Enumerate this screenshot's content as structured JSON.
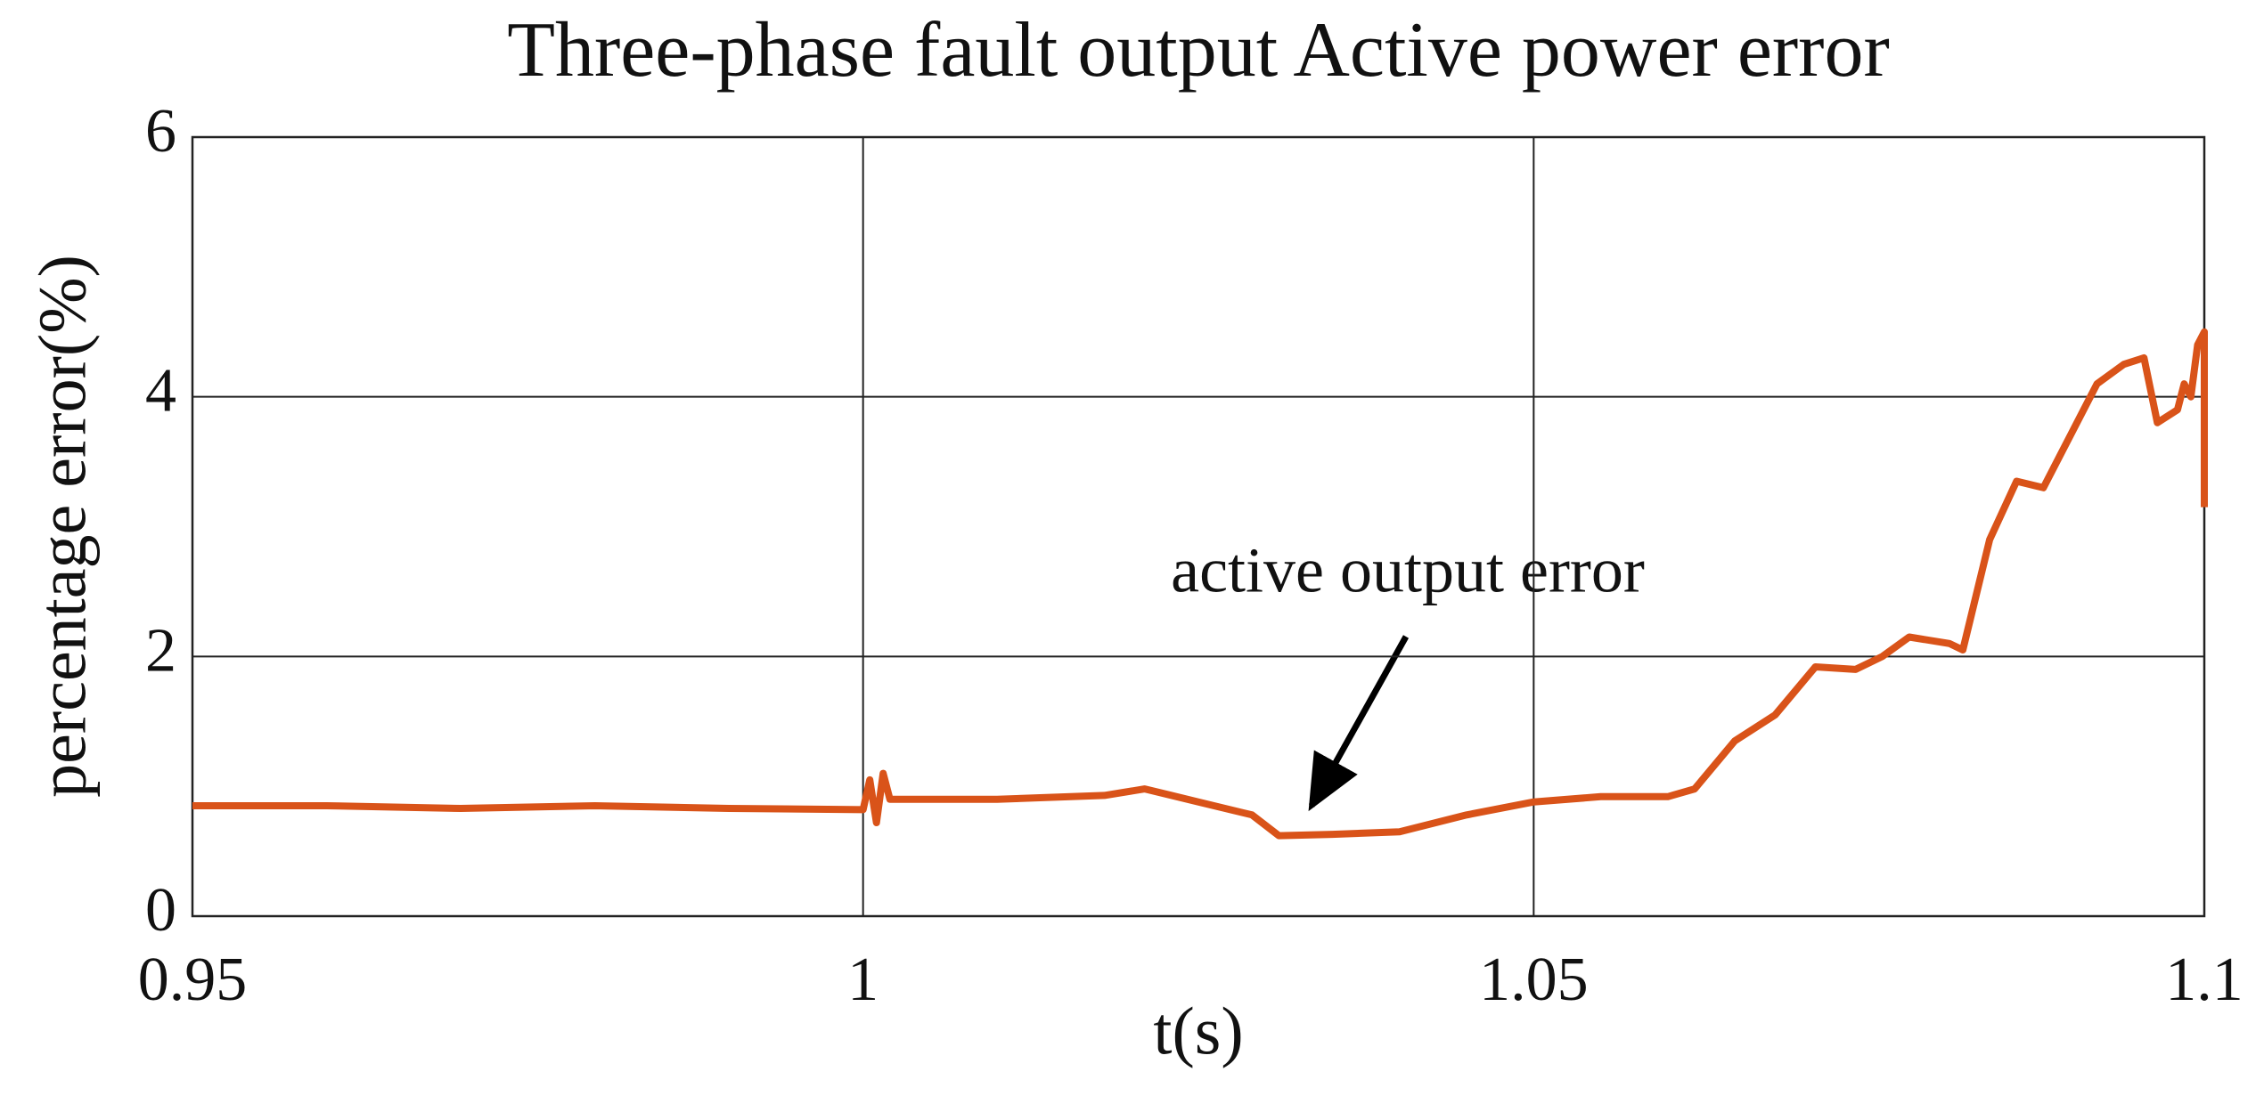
{
  "chart_data": {
    "type": "line",
    "title": "Three-phase fault output Active power error",
    "x_label": "t(s)",
    "y_label": "percentage error(%)",
    "annotation": "active output error",
    "xlim": [
      0.95,
      1.1
    ],
    "xticks": [
      0.95,
      1,
      1.05,
      1.1
    ],
    "ylim": [
      0,
      6
    ],
    "yticks": [
      0,
      2,
      4,
      6
    ],
    "grid": true,
    "series": [
      {
        "color": "#d95319",
        "x": [
          0.95,
          0.96,
          0.97,
          0.98,
          0.99,
          1.0,
          1.0005,
          1.001,
          1.0015,
          1.002,
          1.01,
          1.018,
          1.021,
          1.025,
          1.029,
          1.031,
          1.035,
          1.04,
          1.045,
          1.05,
          1.055,
          1.06,
          1.062,
          1.065,
          1.068,
          1.071,
          1.074,
          1.076,
          1.078,
          1.081,
          1.082,
          1.084,
          1.086,
          1.088,
          1.09,
          1.092,
          1.094,
          1.0955,
          1.0965,
          1.098,
          1.0985,
          1.099,
          1.0995,
          1.1,
          1.1
        ],
        "values": [
          0.85,
          0.85,
          0.83,
          0.85,
          0.83,
          0.82,
          1.05,
          0.72,
          1.1,
          0.9,
          0.9,
          0.93,
          0.98,
          0.88,
          0.78,
          0.62,
          0.63,
          0.65,
          0.78,
          0.88,
          0.92,
          0.92,
          0.98,
          1.35,
          1.55,
          1.92,
          1.9,
          2.0,
          2.15,
          2.1,
          2.05,
          2.9,
          3.35,
          3.3,
          3.7,
          4.1,
          4.25,
          4.3,
          3.8,
          3.9,
          4.1,
          4.0,
          4.4,
          4.5,
          3.15
        ]
      }
    ]
  }
}
